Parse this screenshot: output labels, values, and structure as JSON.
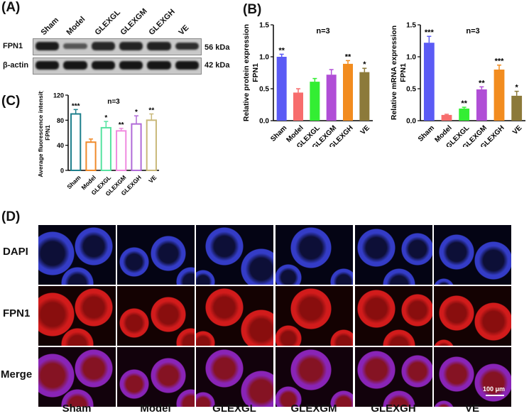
{
  "panels": {
    "A": "(A)",
    "B": "(B)",
    "C": "(C)",
    "D": "(D)"
  },
  "blot": {
    "lanes": [
      "Sham",
      "Model",
      "GLEXGL",
      "GLEXGM",
      "GLEXGH",
      "VE"
    ],
    "rows": [
      {
        "label": "FPN1",
        "kda": "56 kDa",
        "intensity": [
          0.95,
          0.45,
          0.85,
          0.88,
          0.9,
          0.8
        ]
      },
      {
        "label": "β-actin",
        "kda": "42 kDa",
        "intensity": [
          1,
          1,
          1,
          1,
          1,
          1
        ]
      }
    ]
  },
  "chart_data": [
    {
      "id": "B-protein",
      "type": "bar",
      "categories": [
        "Sham",
        "Model",
        "GLEXGL",
        "GLEXGM",
        "GLEXGH",
        "VE"
      ],
      "values": [
        1.0,
        0.44,
        0.61,
        0.72,
        0.89,
        0.76
      ],
      "errors": [
        0.04,
        0.06,
        0.05,
        0.08,
        0.05,
        0.06
      ],
      "significance": [
        "**",
        "",
        "",
        "",
        "**",
        "*"
      ],
      "colors": [
        "#5b5bf5",
        "#f76d6d",
        "#33ee33",
        "#b04ed6",
        "#f28c1f",
        "#8c7a3a"
      ],
      "ylabel_line1": "Relative protein expression",
      "ylabel_line2": "FPN1",
      "annotation": "n=3",
      "ylim": [
        0,
        1.5
      ],
      "yticks": [
        "0.0",
        "0.5",
        "1.0",
        "1.5"
      ],
      "style": "filled"
    },
    {
      "id": "B-mrna",
      "type": "bar",
      "categories": [
        "Sham",
        "Model",
        "GLEXGL",
        "GLEXGM",
        "GLEXGH",
        "VE"
      ],
      "values": [
        1.22,
        0.09,
        0.19,
        0.49,
        0.8,
        0.39
      ],
      "errors": [
        0.1,
        0.01,
        0.02,
        0.04,
        0.07,
        0.07
      ],
      "significance": [
        "***",
        "",
        "**",
        "**",
        "***",
        "*"
      ],
      "colors": [
        "#5b5bf5",
        "#f76d6d",
        "#33ee33",
        "#b04ed6",
        "#f28c1f",
        "#8c7a3a"
      ],
      "ylabel_line1": "Relative mRNA expression",
      "ylabel_line2": "FPN1",
      "annotation": "n=3",
      "ylim": [
        0,
        1.5
      ],
      "yticks": [
        "0.0",
        "0.5",
        "1.0",
        "1.5"
      ],
      "style": "filled"
    },
    {
      "id": "C-fluorescence",
      "type": "bar",
      "categories": [
        "Sham",
        "Model",
        "GLEXGL",
        "GLEXGM",
        "GLEXGH",
        "VE"
      ],
      "values": [
        90,
        45,
        68,
        63,
        74,
        80
      ],
      "errors": [
        7,
        5,
        10,
        4,
        13,
        10
      ],
      "significance": [
        "***",
        "",
        "*",
        "**",
        "*",
        "**"
      ],
      "colors": [
        "#1e7f8c",
        "#f08a2a",
        "#55e3a0",
        "#f08ae0",
        "#b06ad8",
        "#c9b87a"
      ],
      "ylabel_line1": "Average fluorescence intensity",
      "ylabel_line2": "FPN1",
      "annotation": "n=3",
      "ylim": [
        0,
        120
      ],
      "yticks": [
        "0",
        "40",
        "80",
        "120"
      ],
      "style": "outline"
    }
  ],
  "micro": {
    "rows": [
      {
        "label": "DAPI",
        "color": "#1f77c4",
        "kind": "dapi"
      },
      {
        "label": "FPN1",
        "color": "#d71f1f",
        "kind": "fpn"
      },
      {
        "label": "Merge",
        "color": "#cc6e1a",
        "kind": "merge"
      }
    ],
    "columns": [
      "Sham",
      "Model",
      "GLEXGL",
      "GLEXGM",
      "GLEXGH",
      "VE"
    ],
    "scale_bar": "100 μm"
  }
}
